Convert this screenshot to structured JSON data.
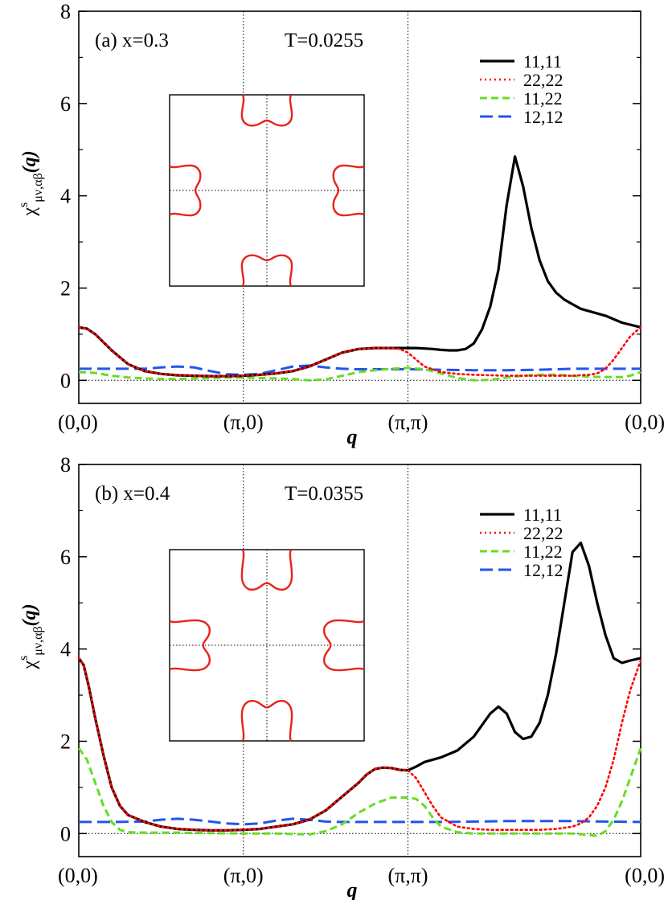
{
  "colors": {
    "s11_11": "#000000",
    "s22_22": "#ff0000",
    "s11_22": "#66dd22",
    "s12_12": "#2255ee",
    "fermi": "#e8231a",
    "axis": "#000000"
  },
  "shared": {
    "ylabel_main": "χ",
    "ylabel_sup": "s",
    "ylabel_sub": "μν,αβ",
    "ylabel_arg": "(q)",
    "xlabel": "q",
    "x_ticks": [
      "(0,0)",
      "(π,0)",
      "(π,π)",
      "(0,0)"
    ],
    "y_ticks": [
      "0",
      "2",
      "4",
      "6",
      "8"
    ]
  },
  "chart_data": [
    {
      "type": "line",
      "panel": "(a) x=0.3",
      "temperature": "T=0.0255",
      "xlabel": "q",
      "ylabel": "χ^s_{μν,αβ}(q)",
      "x_ticks": [
        "(0,0)",
        "(π,0)",
        "(π,π)",
        "(0,0)"
      ],
      "x_domain": [
        0,
        3.414
      ],
      "ylim": [
        -0.5,
        8
      ],
      "legend": [
        "11,11",
        "22,22",
        "11,22",
        "12,12"
      ],
      "series": [
        {
          "name": "11,11",
          "style": "solid",
          "x": [
            0,
            0.05,
            0.1,
            0.2,
            0.3,
            0.4,
            0.5,
            0.6,
            0.7,
            0.8,
            0.9,
            1.0,
            1.1,
            1.2,
            1.3,
            1.4,
            1.5,
            1.6,
            1.7,
            1.8,
            1.9,
            2.0,
            2.05,
            2.1,
            2.15,
            2.2,
            2.25,
            2.3,
            2.35,
            2.4,
            2.45,
            2.5,
            2.55,
            2.6,
            2.65,
            2.7,
            2.75,
            2.8,
            2.85,
            2.9,
            2.95,
            3.0,
            3.05,
            3.1,
            3.2,
            3.3,
            3.414
          ],
          "y": [
            1.15,
            1.12,
            1.0,
            0.65,
            0.35,
            0.2,
            0.14,
            0.11,
            0.1,
            0.09,
            0.09,
            0.1,
            0.12,
            0.15,
            0.2,
            0.3,
            0.45,
            0.6,
            0.68,
            0.7,
            0.7,
            0.7,
            0.7,
            0.69,
            0.68,
            0.66,
            0.65,
            0.65,
            0.68,
            0.8,
            1.1,
            1.6,
            2.4,
            3.8,
            4.85,
            4.2,
            3.3,
            2.6,
            2.15,
            1.9,
            1.75,
            1.65,
            1.55,
            1.5,
            1.4,
            1.25,
            1.15
          ]
        },
        {
          "name": "22,22",
          "style": "dotted",
          "x": [
            0,
            0.05,
            0.1,
            0.2,
            0.3,
            0.4,
            0.5,
            0.6,
            0.7,
            0.8,
            0.9,
            1.0,
            1.1,
            1.2,
            1.3,
            1.4,
            1.5,
            1.6,
            1.7,
            1.8,
            1.9,
            1.95,
            2.0,
            2.05,
            2.1,
            2.2,
            2.3,
            2.4,
            2.5,
            2.6,
            2.7,
            2.8,
            2.9,
            3.0,
            3.1,
            3.15,
            3.2,
            3.25,
            3.3,
            3.35,
            3.414
          ],
          "y": [
            1.15,
            1.12,
            1.0,
            0.65,
            0.35,
            0.2,
            0.14,
            0.11,
            0.1,
            0.09,
            0.09,
            0.1,
            0.12,
            0.15,
            0.2,
            0.3,
            0.45,
            0.6,
            0.68,
            0.7,
            0.7,
            0.68,
            0.6,
            0.45,
            0.3,
            0.18,
            0.14,
            0.12,
            0.11,
            0.1,
            0.1,
            0.1,
            0.1,
            0.1,
            0.12,
            0.15,
            0.25,
            0.45,
            0.7,
            0.95,
            1.15
          ]
        },
        {
          "name": "11,22",
          "style": "dashed",
          "x": [
            0,
            0.1,
            0.2,
            0.3,
            0.4,
            0.5,
            0.6,
            0.7,
            0.8,
            0.9,
            1.0,
            1.1,
            1.2,
            1.3,
            1.4,
            1.5,
            1.6,
            1.7,
            1.8,
            1.9,
            2.0,
            2.1,
            2.2,
            2.3,
            2.4,
            2.5,
            2.6,
            2.7,
            2.8,
            2.9,
            3.0,
            3.1,
            3.2,
            3.3,
            3.35,
            3.414
          ],
          "y": [
            0.18,
            0.16,
            0.1,
            0.06,
            0.04,
            0.03,
            0.03,
            0.04,
            0.05,
            0.06,
            0.06,
            0.05,
            0.04,
            0.03,
            0.0,
            0.02,
            0.1,
            0.18,
            0.22,
            0.25,
            0.27,
            0.24,
            0.15,
            0.05,
            0.0,
            0.01,
            0.06,
            0.1,
            0.12,
            0.12,
            0.1,
            0.08,
            0.07,
            0.07,
            0.1,
            0.18
          ]
        },
        {
          "name": "12,12",
          "style": "longdash",
          "x": [
            0,
            0.2,
            0.4,
            0.5,
            0.6,
            0.7,
            0.8,
            0.9,
            1.0,
            1.1,
            1.2,
            1.3,
            1.4,
            1.5,
            1.6,
            1.7,
            1.8,
            1.9,
            2.0,
            2.2,
            2.4,
            2.6,
            2.8,
            3.0,
            3.2,
            3.414
          ],
          "y": [
            0.25,
            0.25,
            0.25,
            0.28,
            0.3,
            0.28,
            0.2,
            0.13,
            0.12,
            0.14,
            0.22,
            0.3,
            0.32,
            0.28,
            0.25,
            0.24,
            0.24,
            0.24,
            0.24,
            0.23,
            0.22,
            0.22,
            0.23,
            0.25,
            0.25,
            0.25
          ]
        }
      ]
    },
    {
      "type": "line",
      "panel": "(b) x=0.4",
      "temperature": "T=0.0355",
      "xlabel": "q",
      "ylabel": "χ^s_{μν,αβ}(q)",
      "x_ticks": [
        "(0,0)",
        "(π,0)",
        "(π,π)",
        "(0,0)"
      ],
      "x_domain": [
        0,
        3.414
      ],
      "ylim": [
        -0.5,
        8
      ],
      "legend": [
        "11,11",
        "22,22",
        "11,22",
        "12,12"
      ],
      "series": [
        {
          "name": "11,11",
          "style": "solid",
          "x": [
            0,
            0.03,
            0.06,
            0.1,
            0.15,
            0.2,
            0.25,
            0.3,
            0.4,
            0.5,
            0.6,
            0.7,
            0.8,
            0.9,
            1.0,
            1.1,
            1.2,
            1.3,
            1.4,
            1.5,
            1.6,
            1.7,
            1.75,
            1.8,
            1.85,
            1.9,
            1.95,
            2.0,
            2.05,
            2.1,
            2.2,
            2.3,
            2.4,
            2.5,
            2.55,
            2.6,
            2.65,
            2.7,
            2.75,
            2.8,
            2.85,
            2.9,
            2.95,
            3.0,
            3.05,
            3.1,
            3.15,
            3.2,
            3.25,
            3.3,
            3.35,
            3.414
          ],
          "y": [
            3.8,
            3.65,
            3.2,
            2.5,
            1.7,
            1.0,
            0.6,
            0.4,
            0.25,
            0.15,
            0.1,
            0.08,
            0.07,
            0.07,
            0.08,
            0.1,
            0.15,
            0.2,
            0.3,
            0.5,
            0.8,
            1.1,
            1.28,
            1.4,
            1.43,
            1.42,
            1.38,
            1.37,
            1.45,
            1.55,
            1.65,
            1.8,
            2.1,
            2.6,
            2.75,
            2.6,
            2.2,
            2.05,
            2.1,
            2.4,
            3.0,
            3.9,
            5.0,
            6.1,
            6.3,
            5.8,
            5.0,
            4.3,
            3.8,
            3.7,
            3.75,
            3.8
          ]
        },
        {
          "name": "22,22",
          "style": "dotted",
          "x": [
            0,
            0.03,
            0.06,
            0.1,
            0.15,
            0.2,
            0.25,
            0.3,
            0.4,
            0.5,
            0.6,
            0.7,
            0.8,
            0.9,
            1.0,
            1.1,
            1.2,
            1.3,
            1.4,
            1.5,
            1.6,
            1.7,
            1.75,
            1.8,
            1.85,
            1.9,
            1.95,
            2.0,
            2.05,
            2.1,
            2.15,
            2.2,
            2.3,
            2.4,
            2.5,
            2.6,
            2.7,
            2.8,
            2.9,
            3.0,
            3.05,
            3.1,
            3.15,
            3.2,
            3.25,
            3.3,
            3.35,
            3.414
          ],
          "y": [
            3.8,
            3.65,
            3.2,
            2.5,
            1.7,
            1.0,
            0.6,
            0.4,
            0.25,
            0.15,
            0.1,
            0.08,
            0.07,
            0.07,
            0.08,
            0.1,
            0.15,
            0.2,
            0.3,
            0.5,
            0.8,
            1.1,
            1.28,
            1.4,
            1.43,
            1.42,
            1.38,
            1.37,
            1.2,
            0.9,
            0.6,
            0.35,
            0.15,
            0.1,
            0.08,
            0.08,
            0.08,
            0.08,
            0.1,
            0.15,
            0.22,
            0.35,
            0.6,
            1.0,
            1.6,
            2.4,
            3.1,
            3.75
          ]
        },
        {
          "name": "11,22",
          "style": "dashed",
          "x": [
            0,
            0.05,
            0.1,
            0.15,
            0.2,
            0.25,
            0.3,
            0.4,
            0.6,
            0.8,
            1.0,
            1.2,
            1.4,
            1.5,
            1.6,
            1.7,
            1.8,
            1.9,
            2.0,
            2.05,
            2.1,
            2.15,
            2.2,
            2.3,
            2.4,
            2.6,
            2.8,
            3.0,
            3.1,
            3.15,
            3.2,
            3.25,
            3.3,
            3.35,
            3.414
          ],
          "y": [
            1.85,
            1.6,
            1.1,
            0.6,
            0.25,
            0.08,
            0.03,
            0.02,
            0.02,
            0.01,
            0.0,
            0.0,
            -0.02,
            0.05,
            0.2,
            0.45,
            0.65,
            0.78,
            0.78,
            0.75,
            0.6,
            0.35,
            0.15,
            0.03,
            0.0,
            0.0,
            0.0,
            0.0,
            -0.03,
            -0.05,
            0.05,
            0.3,
            0.7,
            1.2,
            1.85
          ]
        },
        {
          "name": "12,12",
          "style": "longdash",
          "x": [
            0,
            0.2,
            0.4,
            0.5,
            0.6,
            0.7,
            0.8,
            0.9,
            1.0,
            1.1,
            1.2,
            1.3,
            1.4,
            1.5,
            1.6,
            1.8,
            2.0,
            2.2,
            2.4,
            2.6,
            2.8,
            3.0,
            3.2,
            3.414
          ],
          "y": [
            0.25,
            0.25,
            0.26,
            0.3,
            0.32,
            0.3,
            0.26,
            0.22,
            0.2,
            0.22,
            0.28,
            0.32,
            0.3,
            0.26,
            0.25,
            0.25,
            0.25,
            0.25,
            0.26,
            0.27,
            0.27,
            0.27,
            0.26,
            0.25
          ]
        }
      ]
    }
  ]
}
